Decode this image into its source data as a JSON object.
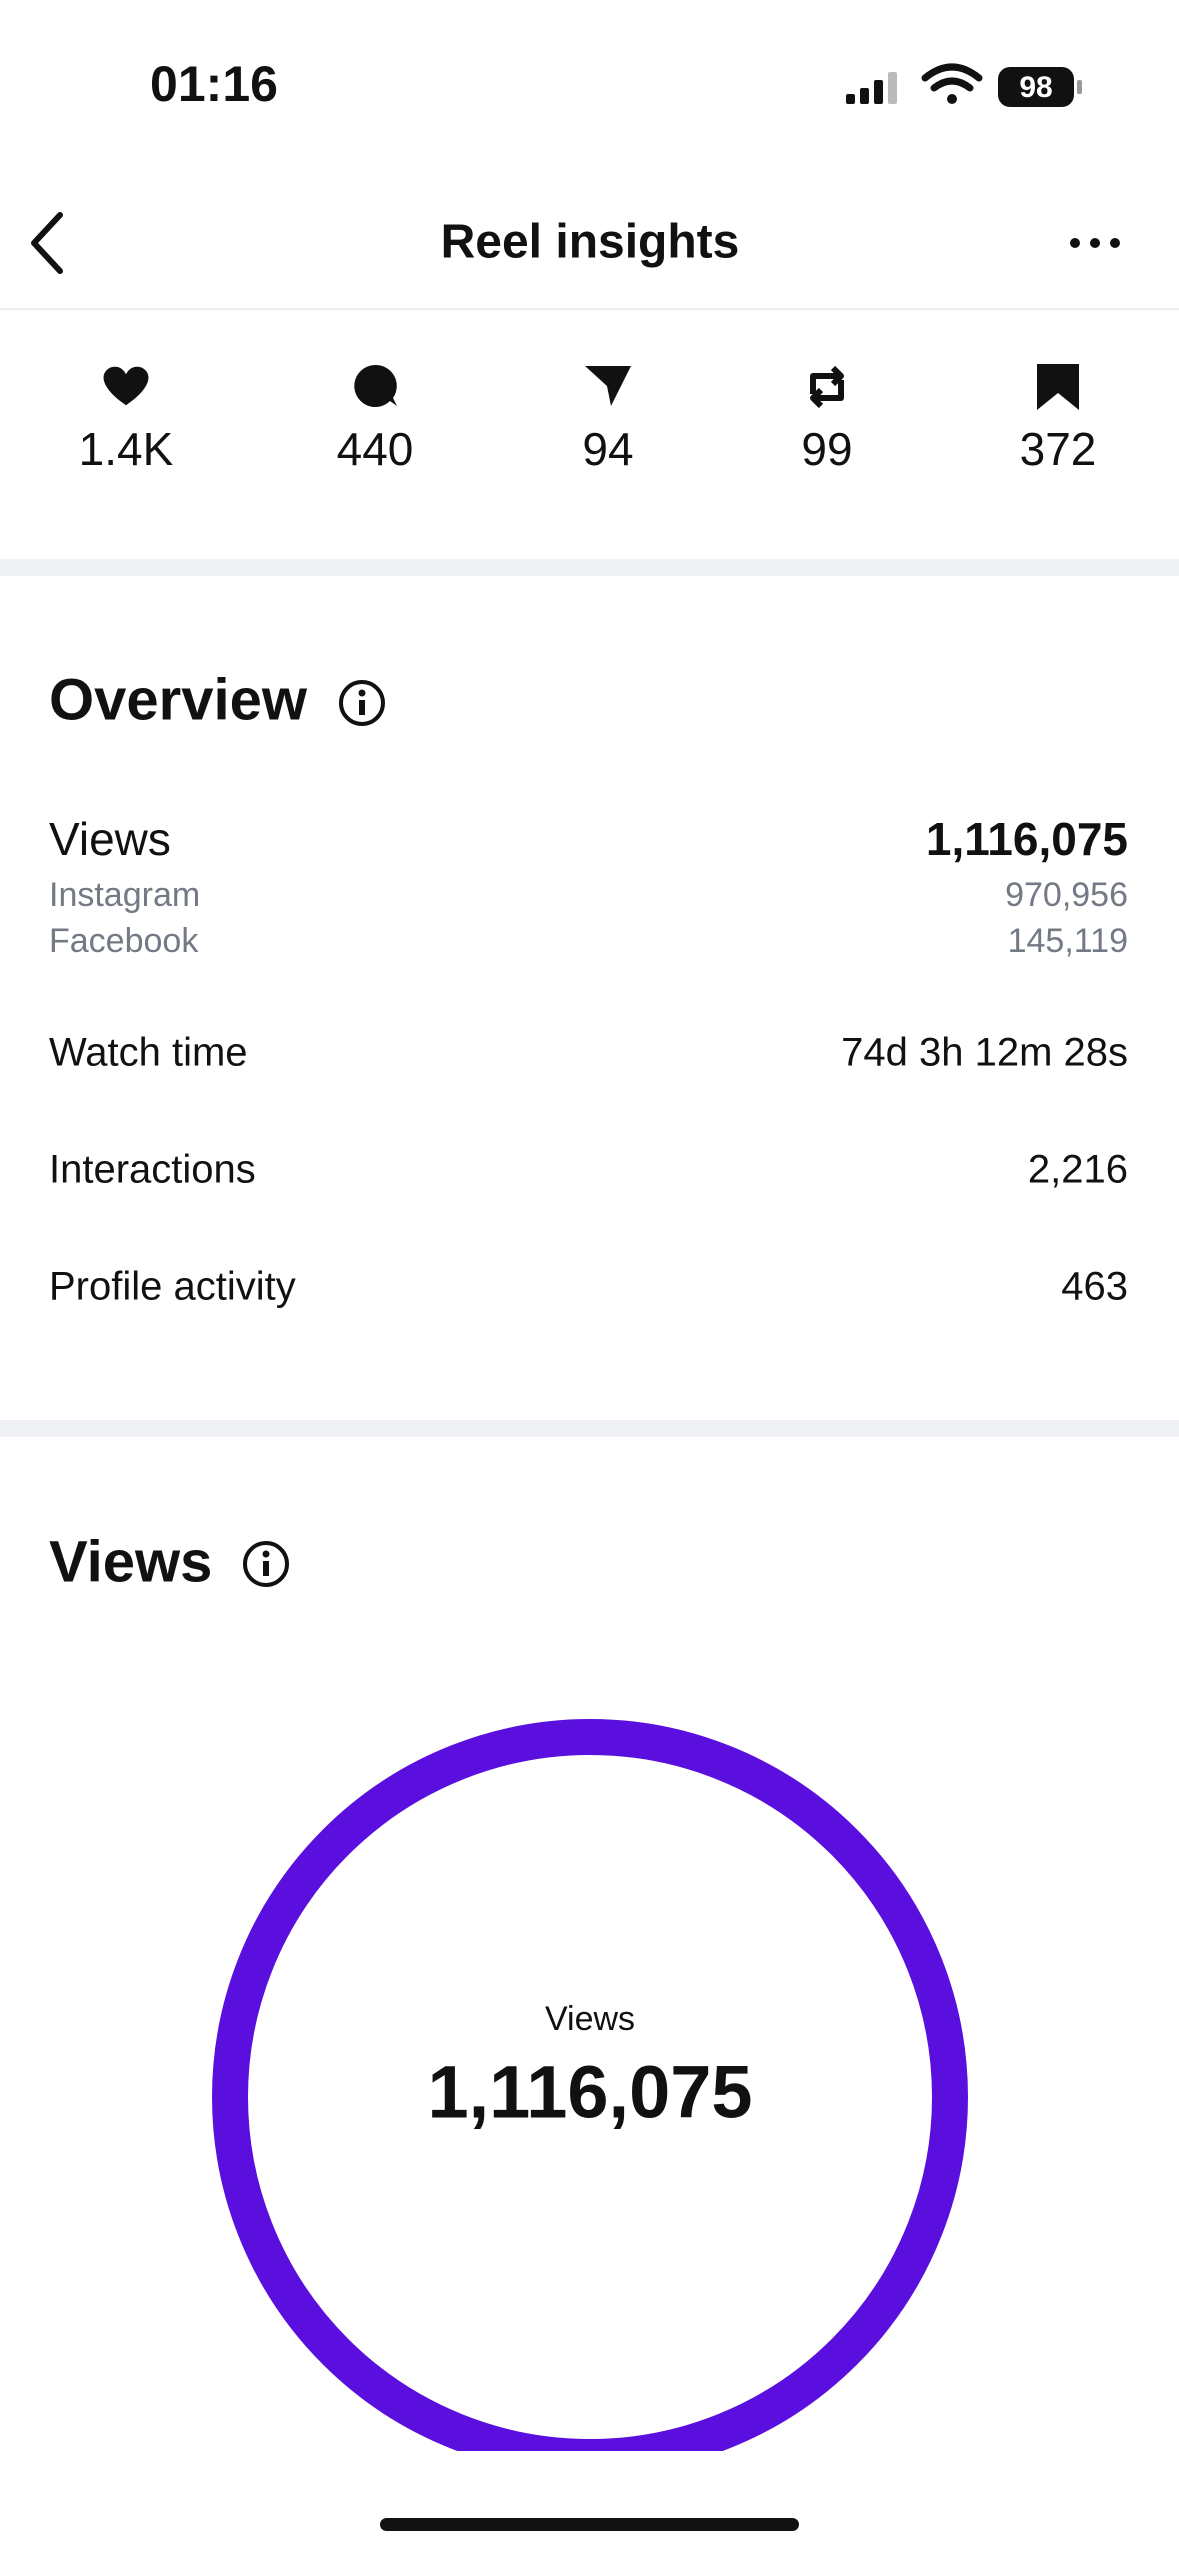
{
  "status_bar": {
    "time": "01:16",
    "battery": "98"
  },
  "header": {
    "title": "Reel insights"
  },
  "stats": [
    "1.4K",
    "440",
    "94",
    "99",
    "372"
  ],
  "overview": {
    "title": "Overview",
    "rows": [
      {
        "label": "Views",
        "value": "1,116,075",
        "sub": [
          {
            "label": "Instagram",
            "value": "970,956"
          },
          {
            "label": "Facebook",
            "value": "145,119"
          }
        ]
      },
      {
        "label": "Watch time",
        "value": "74d 3h 12m 28s"
      },
      {
        "label": "Interactions",
        "value": "2,216"
      },
      {
        "label": "Profile activity",
        "value": "463"
      }
    ]
  },
  "views": {
    "title": "Views",
    "center_label": "Views",
    "center_value": "1,116,075"
  }
}
